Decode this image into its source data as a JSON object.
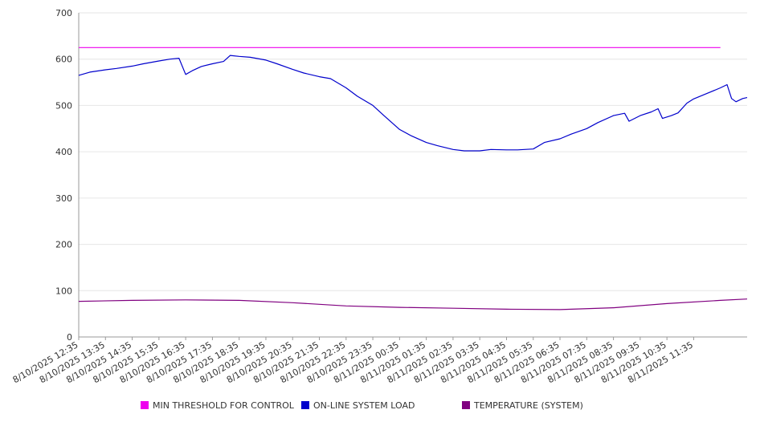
{
  "chart_data": {
    "type": "line",
    "title": "",
    "xlabel": "",
    "ylabel": "",
    "ylim": [
      0,
      700
    ],
    "yticks": [
      0,
      100,
      200,
      300,
      400,
      500,
      600,
      700
    ],
    "grid": true,
    "legend_position": "bottom",
    "x_tick_labels": [
      "8/10/2025 12:35",
      "8/10/2025 13:35",
      "8/10/2025 14:35",
      "8/10/2025 15:35",
      "8/10/2025 16:35",
      "8/10/2025 17:35",
      "8/10/2025 18:35",
      "8/10/2025 19:35",
      "8/10/2025 20:35",
      "8/10/2025 21:35",
      "8/10/2025 22:35",
      "8/10/2025 23:35",
      "8/11/2025 00:35",
      "8/11/2025 01:35",
      "8/11/2025 02:35",
      "8/11/2025 03:35",
      "8/11/2025 04:35",
      "8/11/2025 05:35",
      "8/11/2025 06:35",
      "8/11/2025 07:35",
      "8/11/2025 08:35",
      "8/11/2025 09:35",
      "8/11/2025 10:35",
      "8/11/2025 11:35"
    ],
    "series": [
      {
        "name": "MIN THRESHOLD FOR CONTROL",
        "color": "#ee00ee",
        "points": [
          [
            "8/10/2025 12:35",
            625
          ],
          [
            "8/11/2025 12:35",
            625
          ]
        ]
      },
      {
        "name": "ON-LINE SYSTEM LOAD",
        "color": "#0000cc",
        "points": [
          [
            "8/10/2025 12:35",
            565
          ],
          [
            "8/10/2025 13:00",
            572
          ],
          [
            "8/10/2025 13:35",
            577
          ],
          [
            "8/10/2025 14:00",
            580
          ],
          [
            "8/10/2025 14:35",
            585
          ],
          [
            "8/10/2025 15:00",
            590
          ],
          [
            "8/10/2025 15:35",
            596
          ],
          [
            "8/10/2025 16:00",
            600
          ],
          [
            "8/10/2025 16:20",
            602
          ],
          [
            "8/10/2025 16:35",
            567
          ],
          [
            "8/10/2025 16:50",
            575
          ],
          [
            "8/10/2025 17:10",
            584
          ],
          [
            "8/10/2025 17:35",
            590
          ],
          [
            "8/10/2025 18:00",
            595
          ],
          [
            "8/10/2025 18:15",
            608
          ],
          [
            "8/10/2025 18:35",
            606
          ],
          [
            "8/10/2025 19:00",
            604
          ],
          [
            "8/10/2025 19:35",
            598
          ],
          [
            "8/10/2025 20:00",
            590
          ],
          [
            "8/10/2025 20:35",
            578
          ],
          [
            "8/10/2025 21:00",
            570
          ],
          [
            "8/10/2025 21:35",
            562
          ],
          [
            "8/10/2025 22:00",
            558
          ],
          [
            "8/10/2025 22:35",
            538
          ],
          [
            "8/10/2025 23:00",
            520
          ],
          [
            "8/10/2025 23:35",
            500
          ],
          [
            "8/11/2025 00:00",
            478
          ],
          [
            "8/11/2025 00:35",
            448
          ],
          [
            "8/11/2025 01:00",
            435
          ],
          [
            "8/11/2025 01:35",
            420
          ],
          [
            "8/11/2025 02:00",
            413
          ],
          [
            "8/11/2025 02:35",
            405
          ],
          [
            "8/11/2025 03:00",
            402
          ],
          [
            "8/11/2025 03:35",
            402
          ],
          [
            "8/11/2025 04:00",
            405
          ],
          [
            "8/11/2025 04:35",
            404
          ],
          [
            "8/11/2025 05:00",
            404
          ],
          [
            "8/11/2025 05:35",
            406
          ],
          [
            "8/11/2025 06:00",
            420
          ],
          [
            "8/11/2025 06:35",
            428
          ],
          [
            "8/11/2025 07:00",
            438
          ],
          [
            "8/11/2025 07:35",
            450
          ],
          [
            "8/11/2025 08:00",
            463
          ],
          [
            "8/11/2025 08:35",
            478
          ],
          [
            "8/11/2025 09:00",
            483
          ],
          [
            "8/11/2025 09:10",
            466
          ],
          [
            "8/11/2025 09:35",
            478
          ],
          [
            "8/11/2025 10:00",
            486
          ],
          [
            "8/11/2025 10:15",
            493
          ],
          [
            "8/11/2025 10:25",
            472
          ],
          [
            "8/11/2025 10:45",
            478
          ],
          [
            "8/11/2025 11:00",
            484
          ],
          [
            "8/11/2025 11:20",
            505
          ],
          [
            "8/11/2025 11:35",
            514
          ],
          [
            "8/11/2025 12:00",
            524
          ],
          [
            "8/11/2025 12:35",
            538
          ],
          [
            "8/11/2025 12:50",
            545
          ],
          [
            "8/11/2025 13:00",
            515
          ],
          [
            "8/11/2025 13:10",
            508
          ],
          [
            "8/11/2025 13:25",
            515
          ],
          [
            "8/11/2025 13:35",
            517
          ]
        ]
      },
      {
        "name": "TEMPERATURE (SYSTEM)",
        "color": "#800080",
        "points": [
          [
            "8/10/2025 12:35",
            77
          ],
          [
            "8/10/2025 14:35",
            79
          ],
          [
            "8/10/2025 16:35",
            80
          ],
          [
            "8/10/2025 18:35",
            79
          ],
          [
            "8/10/2025 20:35",
            74
          ],
          [
            "8/10/2025 22:35",
            67
          ],
          [
            "8/11/2025 00:35",
            64
          ],
          [
            "8/11/2025 02:35",
            62
          ],
          [
            "8/11/2025 04:35",
            60
          ],
          [
            "8/11/2025 06:35",
            59
          ],
          [
            "8/11/2025 08:35",
            63
          ],
          [
            "8/11/2025 10:35",
            72
          ],
          [
            "8/11/2025 12:35",
            79
          ],
          [
            "8/11/2025 13:35",
            82
          ]
        ]
      }
    ]
  }
}
